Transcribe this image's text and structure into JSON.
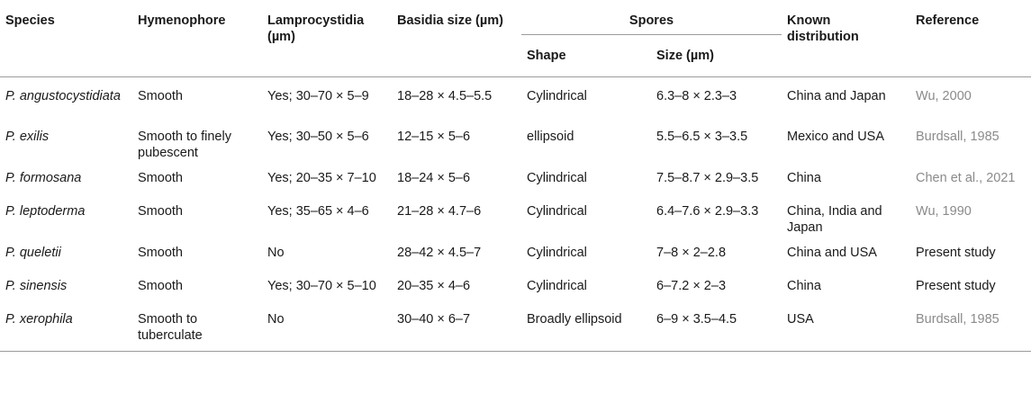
{
  "headers": {
    "species": "Species",
    "hymenophore": "Hymenophore",
    "lamprocystidia": "Lamprocystidia (µm)",
    "basidia": "Basidia size (µm)",
    "spores": "Spores",
    "spore_shape": "Shape",
    "spore_size": "Size (µm)",
    "distribution": "Known distribution",
    "reference": "Reference"
  },
  "rows": [
    {
      "species": "P. angustocystidiata",
      "hymenophore": "Smooth",
      "lamprocystidia": "Yes; 30–70 × 5–9",
      "basidia": "18–28 × 4.5–5.5",
      "shape": "Cylindrical",
      "size": "6.3–8 × 2.3–3",
      "distribution": "China and Japan",
      "reference": "Wu, 2000",
      "ref_linked": true
    },
    {
      "species": "P. exilis",
      "hymenophore": "Smooth to finely pubescent",
      "lamprocystidia": "Yes; 30–50 × 5–6",
      "basidia": "12–15 × 5–6",
      "shape": "ellipsoid",
      "size": "5.5–6.5 × 3–3.5",
      "distribution": "Mexico and USA",
      "reference": "Burdsall, 1985",
      "ref_linked": true
    },
    {
      "species": "P. formosana",
      "hymenophore": "Smooth",
      "lamprocystidia": "Yes; 20–35 × 7–10",
      "basidia": "18–24 × 5–6",
      "shape": "Cylindrical",
      "size": "7.5–8.7 × 2.9–3.5",
      "distribution": "China",
      "reference": "Chen et al., 2021",
      "ref_linked": true
    },
    {
      "species": "P. leptoderma",
      "hymenophore": "Smooth",
      "lamprocystidia": "Yes; 35–65 × 4–6",
      "basidia": "21–28 × 4.7–6",
      "shape": "Cylindrical",
      "size": "6.4–7.6 × 2.9–3.3",
      "distribution": "China, India and Japan",
      "reference": "Wu, 1990",
      "ref_linked": true
    },
    {
      "species": "P. queletii",
      "hymenophore": "Smooth",
      "lamprocystidia": "No",
      "basidia": "28–42 × 4.5–7",
      "shape": "Cylindrical",
      "size": "7–8 × 2–2.8",
      "distribution": "China and USA",
      "reference": "Present study",
      "ref_linked": false
    },
    {
      "species": "P. sinensis",
      "hymenophore": "Smooth",
      "lamprocystidia": "Yes; 30–70 × 5–10",
      "basidia": "20–35 × 4–6",
      "shape": "Cylindrical",
      "size": "6–7.2 × 2–3",
      "distribution": "China",
      "reference": "Present study",
      "ref_linked": false
    },
    {
      "species": "P. xerophila",
      "hymenophore": "Smooth to tuberculate",
      "lamprocystidia": "No",
      "basidia": "30–40 × 6–7",
      "shape": "Broadly ellipsoid",
      "size": "6–9 × 3.5–4.5",
      "distribution": "USA",
      "reference": "Burdsall, 1985",
      "ref_linked": true
    }
  ]
}
